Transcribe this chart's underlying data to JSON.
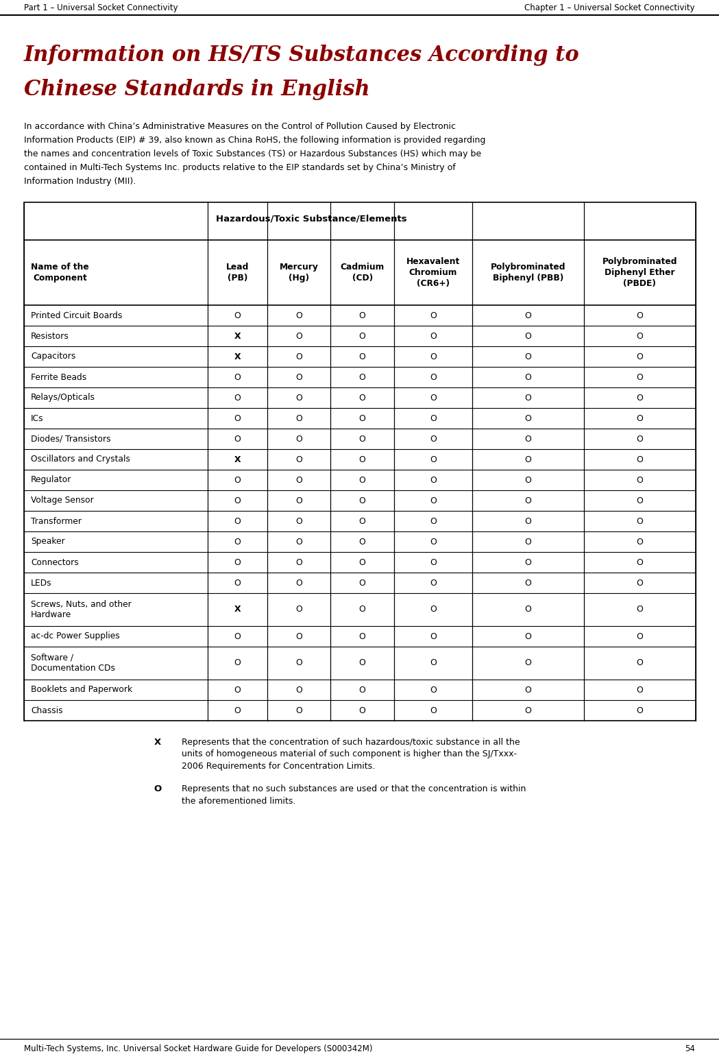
{
  "header_top_left": "Part 1 – Universal Socket Connectivity",
  "header_top_right": "Chapter 1 – Universal Socket Connectivity",
  "title_line1": "Information on HS/TS Substances According to",
  "title_line2": "Chinese Standards in English",
  "intro_lines": [
    "In accordance with China’s Administrative Measures on the Control of Pollution Caused by Electronic",
    "Information Products (EIP) # 39, also known as China RoHS, the following information is provided regarding",
    "the names and concentration levels of Toxic Substances (TS) or Hazardous Substances (HS) which may be",
    "contained in Multi-Tech Systems Inc. products relative to the EIP standards set by China’s Ministry of",
    "Information Industry (MII)."
  ],
  "table_header_span": "Hazardous/Toxic Substance/Elements",
  "col_headers": [
    "Name of the\nComponent",
    "Lead\n(PB)",
    "Mercury\n(Hg)",
    "Cadmium\n(CD)",
    "Hexavalent\nChromium\n(CR6+)",
    "Polybrominated\nBiphenyl (PBB)",
    "Polybrominated\nDiphenyl Ether\n(PBDE)"
  ],
  "rows": [
    [
      "Printed Circuit Boards",
      "O",
      "O",
      "O",
      "O",
      "O",
      "O"
    ],
    [
      "Resistors",
      "X",
      "O",
      "O",
      "O",
      "O",
      "O"
    ],
    [
      "Capacitors",
      "X",
      "O",
      "O",
      "O",
      "O",
      "O"
    ],
    [
      "Ferrite Beads",
      "O",
      "O",
      "O",
      "O",
      "O",
      "O"
    ],
    [
      "Relays/Opticals",
      "O",
      "O",
      "O",
      "O",
      "O",
      "O"
    ],
    [
      "ICs",
      "O",
      "O",
      "O",
      "O",
      "O",
      "O"
    ],
    [
      "Diodes/ Transistors",
      "O",
      "O",
      "O",
      "O",
      "O",
      "O"
    ],
    [
      "Oscillators and Crystals",
      "X",
      "O",
      "O",
      "O",
      "O",
      "O"
    ],
    [
      "Regulator",
      "O",
      "O",
      "O",
      "O",
      "O",
      "O"
    ],
    [
      "Voltage Sensor",
      "O",
      "O",
      "O",
      "O",
      "O",
      "O"
    ],
    [
      "Transformer",
      "O",
      "O",
      "O",
      "O",
      "O",
      "O"
    ],
    [
      "Speaker",
      "O",
      "O",
      "O",
      "O",
      "O",
      "O"
    ],
    [
      "Connectors",
      "O",
      "O",
      "O",
      "O",
      "O",
      "O"
    ],
    [
      "LEDs",
      "O",
      "O",
      "O",
      "O",
      "O",
      "O"
    ],
    [
      "Screws, Nuts, and other\nHardware",
      "X",
      "O",
      "O",
      "O",
      "O",
      "O"
    ],
    [
      "ac-dc Power Supplies",
      "O",
      "O",
      "O",
      "O",
      "O",
      "O"
    ],
    [
      "Software /\nDocumentation CDs",
      "O",
      "O",
      "O",
      "O",
      "O",
      "O"
    ],
    [
      "Booklets and Paperwork",
      "O",
      "O",
      "O",
      "O",
      "O",
      "O"
    ],
    [
      "Chassis",
      "O",
      "O",
      "O",
      "O",
      "O",
      "O"
    ]
  ],
  "legend_x_bold": "X",
  "legend_x_text": "Represents that the concentration of such hazardous/toxic substance in all the\nunits of homogeneous material of such component is higher than the SJ/Txxx-\n2006 Requirements for Concentration Limits.",
  "legend_o_bold": "O",
  "legend_o_text": "Represents that no such substances are used or that the concentration is within\nthe aforementioned limits.",
  "footer_text": "Multi-Tech Systems, Inc. Universal Socket Hardware Guide for Developers (S000342M)",
  "footer_page": "54",
  "bg_color": "#ffffff",
  "title_color": "#8B0000",
  "text_color": "#000000"
}
